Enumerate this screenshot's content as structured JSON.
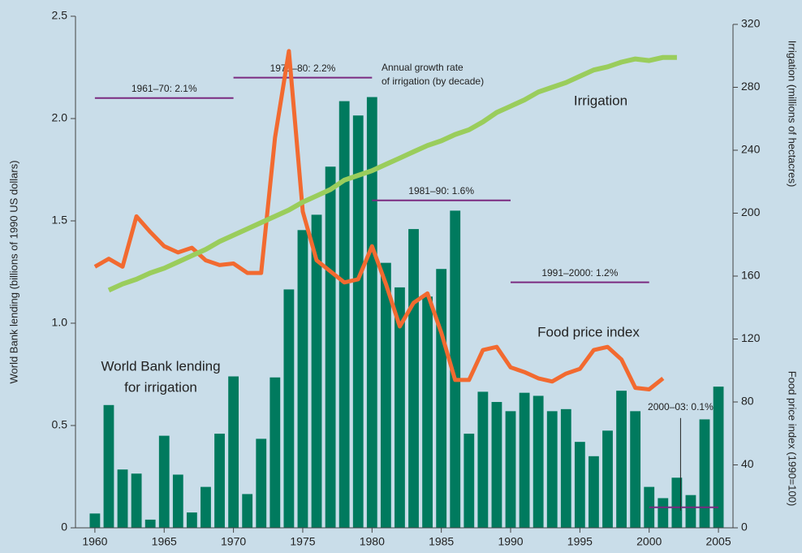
{
  "chart_data": {
    "type": "bar-line",
    "ylabel": "World Bank lending (billions of 1990 US dollars)",
    "y2label_top": "Irrigation (millions of hectacres)",
    "y2label_bottom": "Food price index (1990=100)",
    "bar_label": [
      "World Bank lending",
      "for irrigation"
    ],
    "growth_note": [
      "Annual growth rate",
      "of irrigation (by decade)"
    ],
    "xlim": [
      1958.6,
      2006.05
    ],
    "xticks": [
      1960,
      1965,
      1970,
      1975,
      1980,
      1985,
      1990,
      1995,
      2000,
      2005
    ],
    "ylim": [
      0,
      2.5
    ],
    "yticks": [
      0,
      0.5,
      {
        "value": 1,
        "label": "1.0"
      },
      1.5,
      {
        "value": 2,
        "label": "2.0"
      },
      2.5
    ],
    "y2lim": [
      0,
      320
    ],
    "y2ticks": [
      0,
      40,
      80,
      120,
      160,
      200,
      240,
      280,
      320
    ],
    "series": [
      {
        "name": "World Bank lending for irrigation",
        "kind": "bar",
        "color": "#007a5e",
        "x": [
          1960,
          1961,
          1962,
          1963,
          1964,
          1965,
          1966,
          1967,
          1968,
          1969,
          1970,
          1971,
          1972,
          1973,
          1974,
          1975,
          1976,
          1977,
          1978,
          1979,
          1980,
          1981,
          1982,
          1983,
          1984,
          1985,
          1986,
          1987,
          1988,
          1989,
          1990,
          1991,
          1992,
          1993,
          1994,
          1995,
          1996,
          1997,
          1998,
          1999,
          2000,
          2001,
          2002,
          2003,
          2004,
          2005
        ],
        "values": [
          0.07,
          0.6,
          0.285,
          0.265,
          0.04,
          0.45,
          0.26,
          0.075,
          0.2,
          0.46,
          0.74,
          0.165,
          0.435,
          0.735,
          1.165,
          1.455,
          1.53,
          1.765,
          2.085,
          2.015,
          2.105,
          1.295,
          1.175,
          1.46,
          1.13,
          1.265,
          1.55,
          0.46,
          0.665,
          0.615,
          0.57,
          0.66,
          0.645,
          0.57,
          0.58,
          0.42,
          0.35,
          0.475,
          0.67,
          0.57,
          0.2,
          0.145,
          0.245,
          0.16,
          0.53,
          0.69
        ]
      },
      {
        "name": "Food price index",
        "kind": "line",
        "axis": "y2",
        "color": "#f26a30",
        "x": [
          1960,
          1961,
          1962,
          1963,
          1964,
          1965,
          1966,
          1967,
          1968,
          1969,
          1970,
          1971,
          1972,
          1973,
          1974,
          1975,
          1976,
          1977,
          1978,
          1979,
          1980,
          1981,
          1982,
          1983,
          1984,
          1985,
          1986,
          1987,
          1988,
          1989,
          1990,
          1991,
          1992,
          1993,
          1994,
          1995,
          1996,
          1997,
          1998,
          1999,
          2000,
          2001
        ],
        "values": [
          166,
          171,
          166,
          198,
          188,
          179,
          175,
          178,
          170,
          167,
          168,
          162,
          162,
          248,
          303,
          201,
          170,
          163,
          156,
          158,
          179,
          155,
          128,
          143,
          149,
          124,
          94,
          94,
          113,
          115,
          102,
          99,
          95,
          93,
          98,
          101,
          113,
          115,
          107,
          89,
          88,
          95
        ]
      },
      {
        "name": "Irrigation",
        "kind": "line",
        "axis": "y2",
        "color": "#9acd5c",
        "x": [
          1961,
          1962,
          1963,
          1964,
          1965,
          1966,
          1967,
          1968,
          1969,
          1970,
          1971,
          1972,
          1973,
          1974,
          1975,
          1976,
          1977,
          1978,
          1979,
          1980,
          1981,
          1982,
          1983,
          1984,
          1985,
          1986,
          1987,
          1988,
          1989,
          1990,
          1991,
          1992,
          1993,
          1994,
          1995,
          1996,
          1997,
          1998,
          1999,
          2000,
          2001,
          2002
        ],
        "values": [
          151,
          155,
          158,
          162,
          165,
          169,
          173,
          177,
          182,
          186,
          190,
          194,
          198,
          202,
          207,
          211,
          215,
          221,
          224,
          227,
          231,
          235,
          239,
          243,
          246,
          250,
          253,
          258,
          264,
          268,
          272,
          277,
          280,
          283,
          287,
          291,
          293,
          296,
          298,
          297,
          299,
          299
        ]
      }
    ],
    "annotations": [
      {
        "label": "1961–70: 2.1%",
        "value": 2.1,
        "start": 1960,
        "end": 1970
      },
      {
        "label": "1971–80: 2.2%",
        "value": 2.2,
        "start": 1970,
        "end": 1980
      },
      {
        "label": "1981–90: 1.6%",
        "value": 1.6,
        "start": 1980,
        "end": 1990
      },
      {
        "label": "1991–2000: 1.2%",
        "value": 1.2,
        "start": 1990,
        "end": 2000
      },
      {
        "label": "2000–03: 0.1%",
        "value": 0.1,
        "start": 2000,
        "end": 2005
      }
    ]
  }
}
